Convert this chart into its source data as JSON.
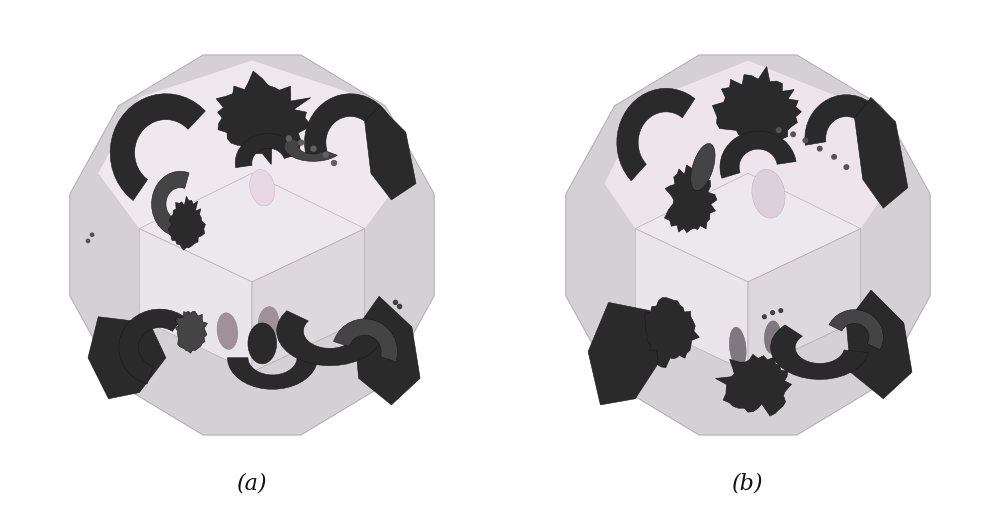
{
  "background_color": "#ffffff",
  "label_a": "(a)",
  "label_b": "(b)",
  "label_fontsize": 16,
  "fig_width": 10.0,
  "fig_height": 5.06,
  "dpi": 100,
  "outer_bg": "#d8d5d8",
  "inner_top_color": "#f0ecf0",
  "inner_bottom_color": "#e8e4e8",
  "box_face_color": "#f5f2f5",
  "box_side_color": "#dedad8",
  "pink_region": "#f2e8f0",
  "dark_domain": "#2a2a2a",
  "med_domain": "#555555",
  "light_domain": "#888888"
}
